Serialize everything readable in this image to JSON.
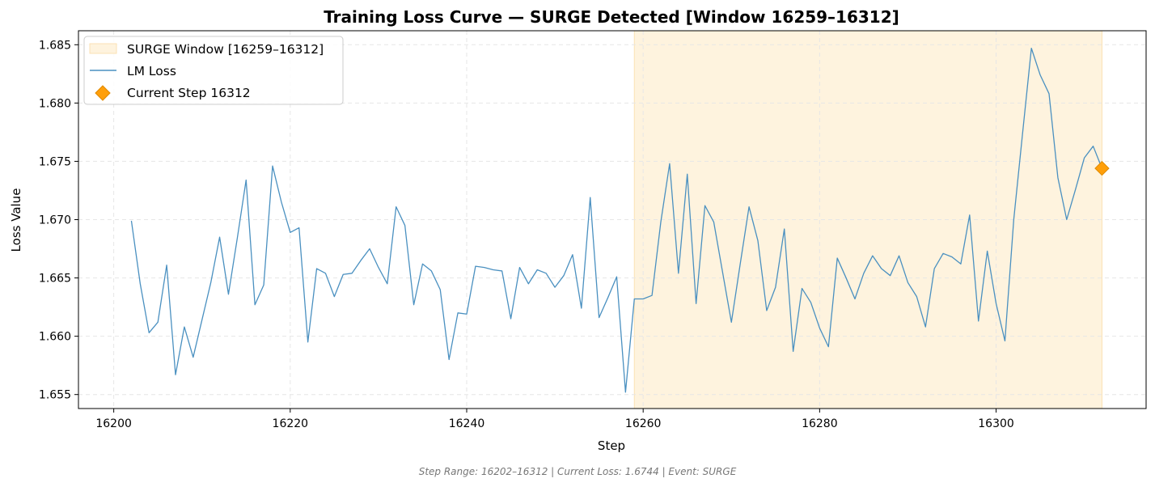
{
  "chart_data": {
    "type": "line",
    "title": "Training Loss Curve — SURGE Detected [Window 16259–16312]",
    "xlabel": "Step",
    "ylabel": "Loss Value",
    "xlim": [
      16196,
      16317
    ],
    "ylim": [
      1.6538,
      1.6862
    ],
    "xticks": [
      16200,
      16220,
      16240,
      16260,
      16280,
      16300
    ],
    "yticks": [
      1.655,
      1.66,
      1.665,
      1.67,
      1.675,
      1.68,
      1.685
    ],
    "ytick_labels": [
      "1.655",
      "1.660",
      "1.665",
      "1.670",
      "1.675",
      "1.680",
      "1.685"
    ],
    "grid": true,
    "legend_position": "top-left",
    "window": {
      "label": "SURGE Window [16259–16312]",
      "start": 16259,
      "end": 16312,
      "color": "#fef3de"
    },
    "series": [
      {
        "name": "LM Loss",
        "color": "#4a90c0",
        "x": [
          16202,
          16203,
          16204,
          16205,
          16206,
          16207,
          16208,
          16209,
          16210,
          16211,
          16212,
          16213,
          16214,
          16215,
          16216,
          16217,
          16218,
          16219,
          16220,
          16221,
          16222,
          16223,
          16224,
          16225,
          16226,
          16227,
          16228,
          16229,
          16230,
          16231,
          16232,
          16233,
          16234,
          16235,
          16236,
          16237,
          16238,
          16239,
          16240,
          16241,
          16242,
          16243,
          16244,
          16245,
          16246,
          16247,
          16248,
          16249,
          16250,
          16251,
          16252,
          16253,
          16254,
          16255,
          16256,
          16257,
          16258,
          16259,
          16260,
          16261,
          16262,
          16263,
          16264,
          16265,
          16266,
          16267,
          16268,
          16269,
          16270,
          16271,
          16272,
          16273,
          16274,
          16275,
          16276,
          16277,
          16278,
          16279,
          16280,
          16281,
          16282,
          16283,
          16284,
          16285,
          16286,
          16287,
          16288,
          16289,
          16290,
          16291,
          16292,
          16293,
          16294,
          16295,
          16296,
          16297,
          16298,
          16299,
          16300,
          16301,
          16302,
          16303,
          16304,
          16305,
          16306,
          16307,
          16308,
          16309,
          16310,
          16311,
          16312
        ],
        "values": [
          1.6699,
          1.6645,
          1.6603,
          1.6612,
          1.6661,
          1.6567,
          1.6608,
          1.6582,
          1.6614,
          1.6646,
          1.6685,
          1.6636,
          1.6684,
          1.6734,
          1.6627,
          1.6644,
          1.6746,
          1.6715,
          1.6689,
          1.6693,
          1.6595,
          1.6658,
          1.6654,
          1.6634,
          1.6653,
          1.6654,
          1.6665,
          1.6675,
          1.6659,
          1.6645,
          1.6711,
          1.6695,
          1.6627,
          1.6662,
          1.6656,
          1.664,
          1.658,
          1.662,
          1.6619,
          1.666,
          1.6659,
          1.6657,
          1.6656,
          1.6615,
          1.6659,
          1.6645,
          1.6657,
          1.6654,
          1.6642,
          1.6652,
          1.667,
          1.6624,
          1.6719,
          1.6616,
          1.6633,
          1.6651,
          1.6552,
          1.6632,
          1.6632,
          1.6635,
          1.6698,
          1.6748,
          1.6654,
          1.6739,
          1.6628,
          1.6712,
          1.6698,
          1.6655,
          1.6612,
          1.6662,
          1.6711,
          1.6682,
          1.6622,
          1.6642,
          1.6692,
          1.6587,
          1.6641,
          1.6629,
          1.6607,
          1.6591,
          1.6667,
          1.665,
          1.6632,
          1.6654,
          1.6669,
          1.6658,
          1.6652,
          1.6669,
          1.6646,
          1.6634,
          1.6608,
          1.6658,
          1.6671,
          1.6668,
          1.6662,
          1.6704,
          1.6613,
          1.6673,
          1.6628,
          1.6596,
          1.67,
          1.6774,
          1.6847,
          1.6824,
          1.6808,
          1.6736,
          1.67,
          1.6726,
          1.6753,
          1.6763,
          1.6744
        ]
      }
    ],
    "current_point": {
      "label": "Current Step 16312",
      "x": 16312,
      "y": 1.6744,
      "color": "#ff9f0a"
    },
    "footer": "Step Range: 16202–16312 | Current Loss: 1.6744 | Event: SURGE"
  }
}
